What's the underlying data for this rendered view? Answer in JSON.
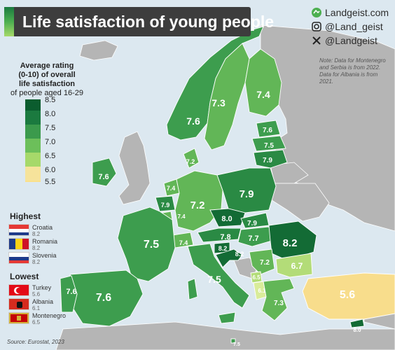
{
  "title": "Life satisfaction of young people",
  "social": {
    "site": "Landgeist.com",
    "instagram": "@Land_geist",
    "x": "@Landgeist"
  },
  "note": "Note: Data for Montenegro and Serbia is from 2022. Data for Albania is from 2021.",
  "legend": {
    "title_line1": "Average rating",
    "title_line2": "(0-10) of overall",
    "title_line3": "life satisfaction",
    "title_line4": "of people aged 16-29",
    "items": [
      {
        "value": "8.5",
        "color": "#0b5c2e"
      },
      {
        "value": "8.0",
        "color": "#1b7a3f"
      },
      {
        "value": "7.5",
        "color": "#3b9a4c"
      },
      {
        "value": "7.0",
        "color": "#6cbf5a"
      },
      {
        "value": "6.5",
        "color": "#a6d96a"
      },
      {
        "value": "6.0",
        "color": "#f6e39b"
      },
      {
        "value": "5.5",
        "color": "#fbe08a"
      }
    ]
  },
  "highest": {
    "heading": "Highest",
    "items": [
      {
        "name": "Croatia",
        "value": "8.2"
      },
      {
        "name": "Romania",
        "value": "8.2"
      },
      {
        "name": "Slovenia",
        "value": "8.2"
      }
    ]
  },
  "lowest": {
    "heading": "Lowest",
    "items": [
      {
        "name": "Turkey",
        "value": "5.6"
      },
      {
        "name": "Albania",
        "value": "6.1"
      },
      {
        "name": "Montenegro",
        "value": "6.5"
      }
    ]
  },
  "source": "Source: Eurostat, 2023",
  "countries": {
    "norway": "7.6",
    "sweden": "7.3",
    "finland": "7.4",
    "estonia": "7.6",
    "latvia": "7.5",
    "lithuania": "7.9",
    "denmark": "7.2",
    "ireland": "7.6",
    "netherlands": "7.4",
    "belgium": "7.9",
    "luxembourg": "7.4",
    "germany": "7.2",
    "poland": "7.9",
    "czechia": "8.0",
    "slovakia": "7.9",
    "austria": "7.8",
    "switzerland": "7.4",
    "hungary": "7.7",
    "slovenia": "8.2",
    "croatia": "8.2",
    "romania": "8.2",
    "serbia": "7.2",
    "bulgaria": "6.7",
    "montenegro": "6.5",
    "albania": "6.1",
    "greece": "7.3",
    "france": "7.5",
    "italy": "7.5",
    "spain": "7.6",
    "portugal": "7.6",
    "turkey": "5.6",
    "cyprus": "8.0",
    "malta": "7.5"
  },
  "colors": {
    "non_data": "#b5b5b5",
    "sea": "#dce8f0",
    "title_bg": "#3d3d3d"
  }
}
